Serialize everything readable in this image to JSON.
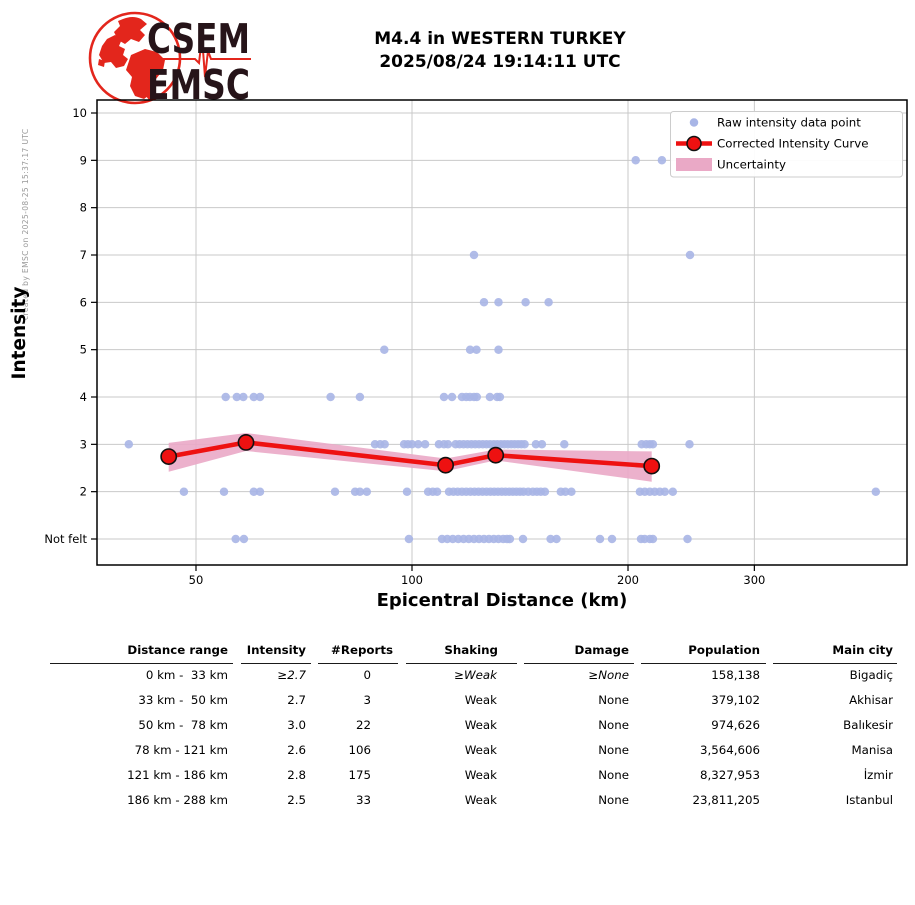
{
  "credit": "created by EMSC on 2025-08-25 15:37:17 UTC",
  "logo": {
    "line1": "CSEM",
    "line2": "EMSC"
  },
  "title": {
    "line1": "M4.4 in WESTERN TURKEY",
    "line2": "2025/08/24 19:14:11 UTC"
  },
  "colors": {
    "scatter": "#a8b5e6",
    "band": "#eaa9c6",
    "curve": "#ee1111",
    "marker_edge": "#111111",
    "grid": "#c9c9c9",
    "frame": "#000000",
    "credit_text": "#999999",
    "logo_red": "#e3261c",
    "logo_text": "#261419"
  },
  "chart_data": {
    "type": "scatter",
    "title": "",
    "xlabel": "Epicentral Distance (km)",
    "ylabel": "Intensity",
    "x_scale": "log",
    "x_range_km": [
      36.5,
      490
    ],
    "x_ticks": [
      50,
      100,
      200,
      300
    ],
    "y_range": [
      0.45,
      10.3
    ],
    "y_ticks": [
      {
        "value": 10,
        "label": "10"
      },
      {
        "value": 9,
        "label": "9"
      },
      {
        "value": 8,
        "label": "8"
      },
      {
        "value": 7,
        "label": "7"
      },
      {
        "value": 6,
        "label": "6"
      },
      {
        "value": 5,
        "label": "5"
      },
      {
        "value": 4,
        "label": "4"
      },
      {
        "value": 3,
        "label": "3"
      },
      {
        "value": 2,
        "label": "2"
      },
      {
        "value": 1,
        "label": "Not felt"
      }
    ],
    "grid": true,
    "legend_position": "upper right",
    "legend": [
      "Raw intensity data point",
      "Corrected Intensity Curve",
      "Uncertainty"
    ],
    "raw_points": [
      {
        "intensity": 9,
        "km": [
          205,
          223
        ]
      },
      {
        "intensity": 7,
        "km": [
          122,
          244
        ]
      },
      {
        "intensity": 6,
        "km": [
          126,
          132,
          144,
          155
        ]
      },
      {
        "intensity": 5,
        "km": [
          91.5,
          120.5,
          123,
          132
        ]
      },
      {
        "intensity": 4,
        "km": [
          55,
          57,
          58.2,
          60.2,
          61.4,
          77,
          84.6,
          110.8,
          113.7,
          117.4,
          119,
          120.4,
          122,
          123.1,
          128.4,
          131.4,
          132.6
        ]
      },
      {
        "intensity": 3,
        "km": [
          40.3,
          88.8,
          90.3,
          91.6,
          97.5,
          98.7,
          100,
          102,
          104.3,
          109,
          110.8,
          112.2,
          115,
          116.5,
          118,
          119.5,
          121,
          122.5,
          124,
          125.5,
          127,
          128.5,
          130,
          131.5,
          133,
          134.5,
          136,
          137.5,
          139,
          140.5,
          142,
          143.5,
          148.8,
          151.7,
          163,
          209,
          212,
          214.5,
          216.6,
          243.6
        ]
      },
      {
        "intensity": 2,
        "km": [
          48.1,
          54.7,
          60.2,
          61.4,
          78.1,
          83.3,
          84.6,
          86.5,
          98.4,
          105.3,
          106.9,
          108.4,
          112.6,
          114.2,
          115.8,
          117.4,
          119,
          120.6,
          122.2,
          123.8,
          125.4,
          127,
          128.6,
          130.2,
          131.8,
          133.4,
          135,
          136.6,
          138.2,
          139.8,
          141.4,
          143,
          145.2,
          147.4,
          149.3,
          151.2,
          153.2,
          161.2,
          163.6,
          166.8,
          207.8,
          211.1,
          214.5,
          217.9,
          221.5,
          225.1,
          230.9,
          443
        ]
      },
      {
        "intensity": 1,
        "km": [
          56.8,
          58.3,
          99,
          110.1,
          112,
          114,
          116,
          118,
          120,
          122,
          124,
          126,
          128,
          130,
          132,
          134,
          135.6,
          136.9,
          142.8,
          156,
          159,
          182.8,
          190,
          208.5,
          211,
          214.5,
          216.6,
          242.1
        ]
      }
    ],
    "corrected_curve": {
      "km": [
        45.8,
        58.7,
        111.4,
        130.8,
        215.8
      ],
      "intensity": [
        2.74,
        3.04,
        2.56,
        2.77,
        2.54
      ],
      "uncertainty_upper": [
        3.03,
        3.24,
        2.7,
        2.89,
        2.85
      ],
      "uncertainty_lower": [
        2.42,
        2.86,
        2.43,
        2.66,
        2.21
      ]
    }
  },
  "table": {
    "headers": [
      "Distance range",
      "Intensity",
      "#Reports",
      "Shaking",
      "Damage",
      "Population",
      "Main city"
    ],
    "rows": [
      [
        "0 km -  33 km",
        "≥2.7",
        "0",
        "≥Weak",
        "≥None",
        "158,138",
        "Bigadiç"
      ],
      [
        "33 km -  50 km",
        "2.7",
        "3",
        "Weak",
        "None",
        "379,102",
        "Akhisar"
      ],
      [
        "50 km -  78 km",
        "3.0",
        "22",
        "Weak",
        "None",
        "974,626",
        "Balıkesir"
      ],
      [
        "78 km - 121 km",
        "2.6",
        "106",
        "Weak",
        "None",
        "3,564,606",
        "Manisa"
      ],
      [
        "121 km - 186 km",
        "2.8",
        "175",
        "Weak",
        "None",
        "8,327,953",
        "İzmir"
      ],
      [
        "186 km - 288 km",
        "2.5",
        "33",
        "Weak",
        "None",
        "23,811,205",
        "Istanbul"
      ]
    ]
  }
}
